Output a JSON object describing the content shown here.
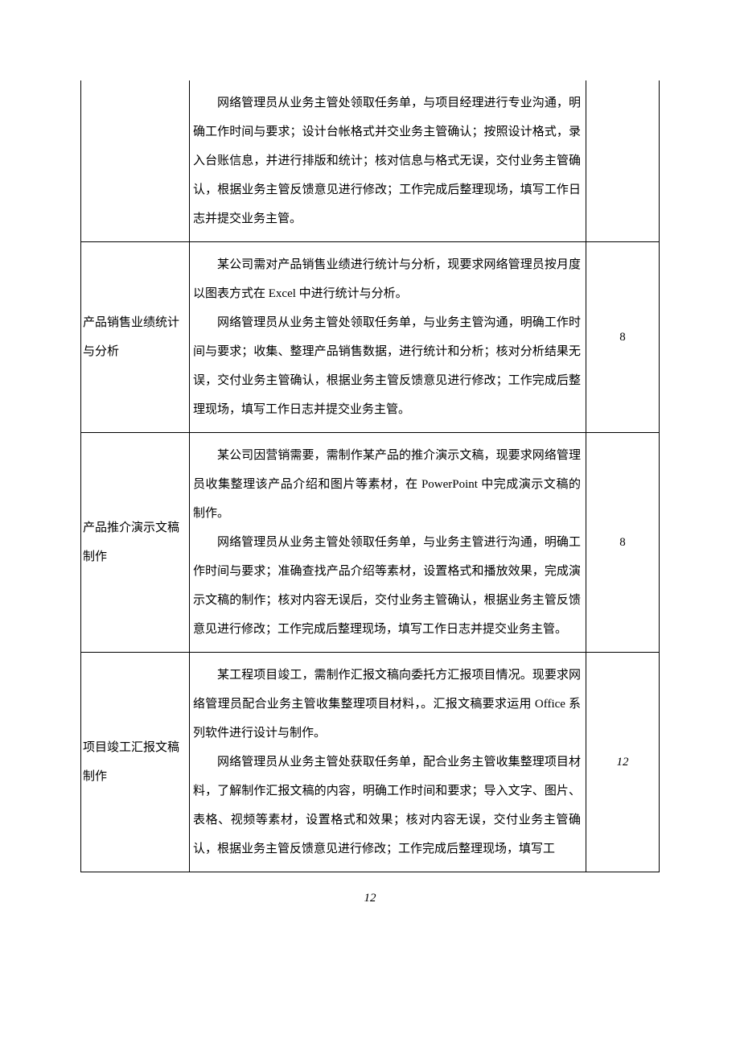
{
  "rows": [
    {
      "title": "",
      "desc_paragraphs": [
        "网络管理员从业务主管处领取任务单，与项目经理进行专业沟通，明确工作时间与要求；设计台帐格式并交业务主管确认；按照设计格式，录入台账信息，并进行排版和统计；核对信息与格式无误，交付业务主管确认，根据业务主管反馈意见进行修改；工作完成后整理现场，填写工作日志并提交业务主管。"
      ],
      "score": "",
      "continuation": true
    },
    {
      "title": "产品销售业绩统计与分析",
      "desc_paragraphs": [
        "某公司需对产品销售业绩进行统计与分析，现要求网络管理员按月度以图表方式在 Excel 中进行统计与分析。",
        "网络管理员从业务主管处领取任务单，与业务主管沟通，明确工作时间与要求；收集、整理产品销售数据，进行统计和分析；核对分析结果无误，交付业务主管确认，根据业务主管反馈意见进行修改；工作完成后整理现场，填写工作日志并提交业务主管。"
      ],
      "score": "8",
      "continuation": false
    },
    {
      "title": "产品推介演示文稿制作",
      "desc_paragraphs": [
        "某公司因营销需要，需制作某产品的推介演示文稿，现要求网络管理员收集整理该产品介绍和图片等素材，在 PowerPoint 中完成演示文稿的制作。",
        "网络管理员从业务主管处领取任务单，与业务主管进行沟通，明确工作时间与要求；准确查找产品介绍等素材，设置格式和播放效果，完成演示文稿的制作；核对内容无误后，交付业务主管确认，根据业务主管反馈意见进行修改；工作完成后整理现场，填写工作日志并提交业务主管。"
      ],
      "score": "8",
      "continuation": false
    },
    {
      "title": "项目竣工汇报文稿制作",
      "desc_paragraphs": [
        "某工程项目竣工，需制作汇报文稿向委托方汇报项目情况。现要求网络管理员配合业务主管收集整理项目材料，。汇报文稿要求运用 Office 系列软件进行设计与制作。",
        "网络管理员从业务主管处获取任务单，配合业务主管收集整理项目材料，了解制作汇报文稿的内容，明确工作时间和要求；导入文字、图片、表格、视频等素材，设置格式和效果；核对内容无误，交付业务主管确认，根据业务主管反馈意见进行修改；工作完成后整理现场，填写工"
      ],
      "score": "12",
      "score_italic": true,
      "continuation": false
    }
  ],
  "page_number": "12"
}
